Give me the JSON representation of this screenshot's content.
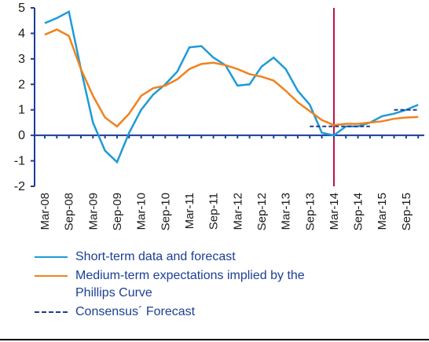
{
  "chart_data": {
    "type": "line",
    "categories": [
      "Mar-08",
      null,
      "Sep-08",
      null,
      "Mar-09",
      null,
      "Sep-09",
      null,
      "Mar-10",
      null,
      "Sep-10",
      null,
      "Mar-11",
      null,
      "Sep-11",
      null,
      "Mar-12",
      null,
      "Sep-12",
      null,
      "Mar-13",
      null,
      "Sep-13",
      null,
      "Mar-14",
      null,
      "Sep-14",
      null,
      "Mar-15",
      null,
      "Sep-15",
      null
    ],
    "series": [
      {
        "name": "Short-term data and forecast",
        "color": "#1e9bd7",
        "dash": false,
        "values": [
          4.4,
          4.6,
          4.85,
          2.6,
          0.5,
          -0.6,
          -1.05,
          0.1,
          1.0,
          1.6,
          2.0,
          2.5,
          3.45,
          3.5,
          3.05,
          2.75,
          1.95,
          2.0,
          2.7,
          3.05,
          2.6,
          1.75,
          1.2,
          0.1,
          0.0,
          0.35,
          0.35,
          0.5,
          0.75,
          0.85,
          1.0,
          1.2
        ]
      },
      {
        "name": "Medium-term expectations implied by the Phillips Curve",
        "color": "#f0821e",
        "dash": false,
        "values": [
          3.95,
          4.15,
          3.9,
          2.6,
          1.55,
          0.7,
          0.35,
          0.85,
          1.55,
          1.85,
          1.95,
          2.2,
          2.6,
          2.8,
          2.85,
          2.75,
          2.6,
          2.4,
          2.3,
          2.15,
          1.75,
          1.3,
          0.95,
          0.6,
          0.4,
          0.45,
          0.45,
          0.5,
          0.55,
          0.65,
          0.7,
          0.72
        ]
      },
      {
        "name": "Consensus´ Forecast",
        "color": "#1c3f94",
        "dash": true,
        "values": [
          null,
          null,
          null,
          null,
          null,
          null,
          null,
          null,
          null,
          null,
          null,
          null,
          null,
          null,
          null,
          null,
          null,
          null,
          null,
          null,
          null,
          null,
          0.35,
          0.35,
          0.35,
          0.35,
          0.35,
          0.35,
          null,
          1.0,
          1.0,
          1.0
        ]
      }
    ],
    "ylim": [
      -2,
      5
    ],
    "yticks": [
      5,
      4,
      3,
      2,
      1,
      0,
      -1,
      -2
    ],
    "axis_color": "#1c3f94"
  }
}
